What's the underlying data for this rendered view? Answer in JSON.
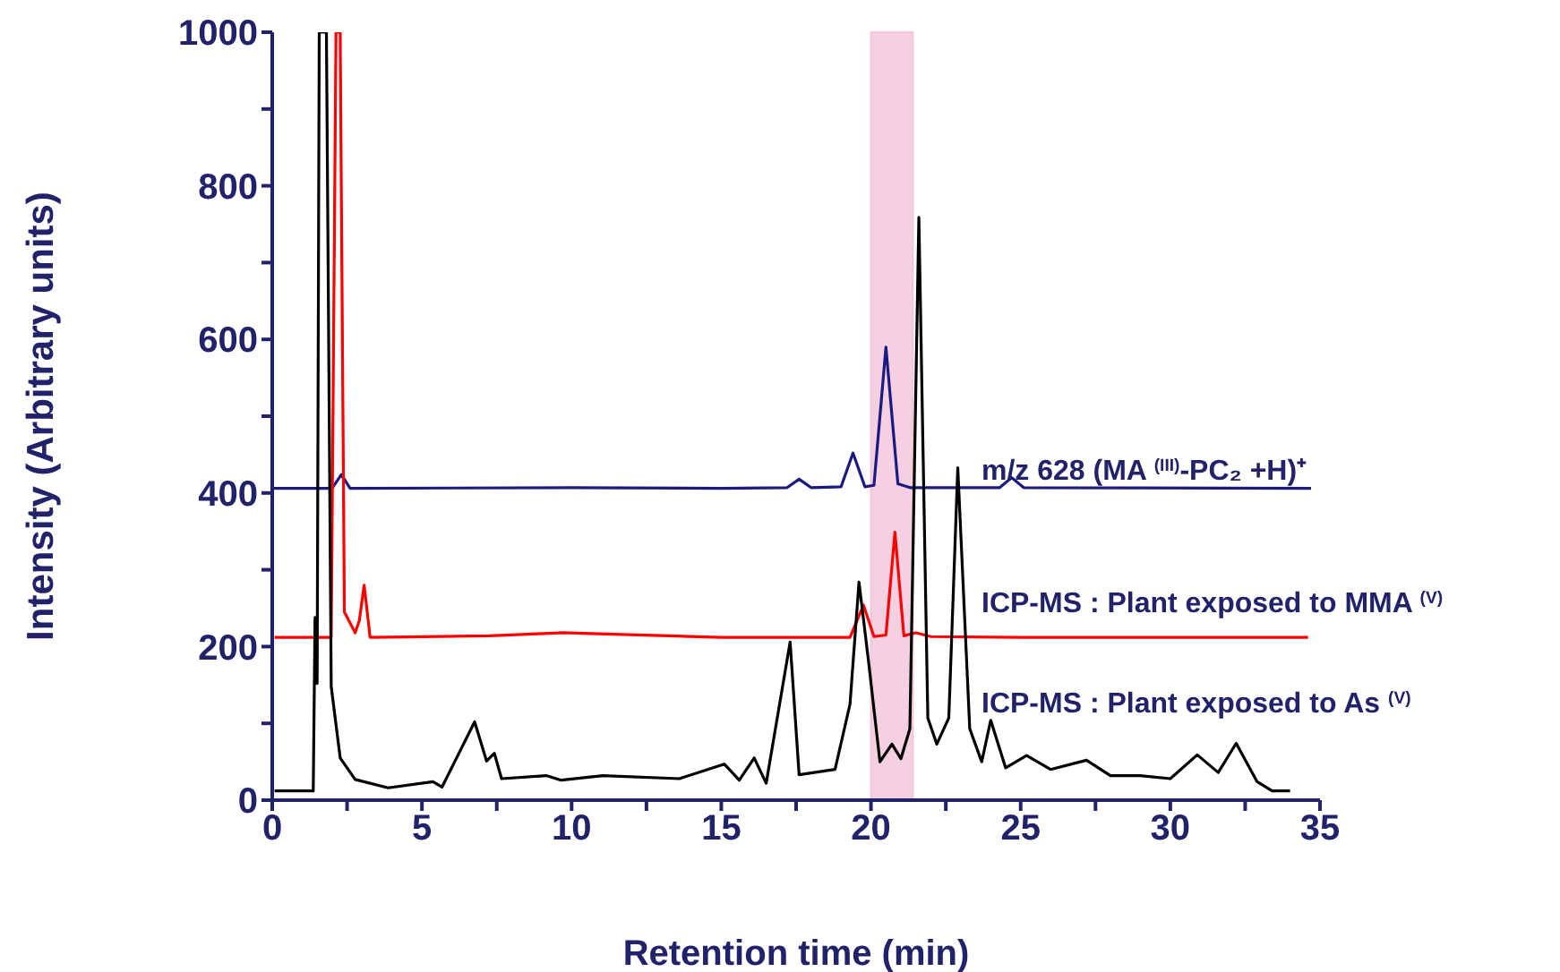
{
  "chart_data": {
    "type": "line",
    "xlabel": "Retention time (min)",
    "ylabel": "Intensity (Arbitrary units)",
    "xlim": [
      0,
      35
    ],
    "ylim": [
      0,
      1000
    ],
    "xticks": [
      0,
      {
        "value": 2.5,
        "label": null
      },
      5,
      {
        "value": 7.5,
        "label": null
      },
      10,
      {
        "value": 12.5,
        "label": null
      },
      15,
      {
        "value": 17.5,
        "label": null
      },
      20,
      {
        "value": 22.5,
        "label": null
      },
      25,
      {
        "value": 27.5,
        "label": null
      },
      30,
      {
        "value": 32.5,
        "label": null
      },
      35
    ],
    "yticks": [
      0,
      {
        "value": 100,
        "label": null
      },
      200,
      {
        "value": 300,
        "label": null
      },
      400,
      {
        "value": 500,
        "label": null
      },
      600,
      {
        "value": 700,
        "label": null
      },
      800,
      {
        "value": 900,
        "label": null
      },
      1000
    ],
    "bands": [
      {
        "axis": "x",
        "from": 20.0,
        "to": 21.4,
        "color": "#f2c4da"
      }
    ],
    "series": [
      {
        "name": "m/z 628 (MA $^{(III)}$-PC₂ +H)⁺",
        "color": "#1a1a80",
        "x": [
          0,
          2,
          2.31,
          2.6,
          10,
          15,
          17.2,
          17.6,
          18.0,
          19.0,
          19.4,
          19.8,
          20.1,
          20.5,
          20.9,
          21.3,
          24.3,
          24.7,
          25.1,
          34.7
        ],
        "values": [
          406,
          406,
          424,
          406,
          407,
          406,
          407,
          418,
          407,
          408,
          452,
          408,
          410,
          590,
          412,
          407,
          407,
          420,
          407,
          406
        ]
      },
      {
        "name": "ICP-MS : Plant exposed to MMA $^{(V)}$",
        "color": "#ff0000",
        "x": [
          0.08,
          1.97,
          2.13,
          2.27,
          2.41,
          2.77,
          2.91,
          3.07,
          3.27,
          7.26,
          9.75,
          10.65,
          15,
          19.3,
          19.75,
          20.1,
          20.5,
          20.8,
          21.1,
          21.5,
          22,
          25,
          30,
          34.6
        ],
        "values": [
          212,
          212,
          1000,
          1000,
          245,
          218,
          234,
          280,
          212,
          214,
          218,
          217,
          212,
          212,
          254,
          213,
          215,
          349,
          214,
          218,
          213,
          212,
          212,
          212
        ]
      },
      {
        "name": "ICP-MS : Plant exposed to As $^{(V)}$",
        "color": "#000000",
        "x": [
          0.08,
          1.37,
          1.43,
          1.5,
          1.57,
          1.81,
          1.97,
          2.27,
          2.77,
          3.87,
          5.37,
          5.67,
          6.76,
          7.16,
          7.42,
          7.66,
          9.15,
          9.65,
          11.05,
          13.6,
          15.1,
          15.6,
          16.1,
          16.5,
          17.3,
          17.6,
          18.8,
          19.3,
          19.6,
          19.9,
          20.3,
          20.7,
          21.0,
          21.3,
          21.6,
          21.9,
          22.2,
          22.6,
          22.9,
          23.3,
          23.7,
          24.0,
          24.5,
          25.2,
          26.0,
          27.2,
          28.0,
          29.0,
          30.0,
          30.9,
          31.6,
          32.2,
          32.9,
          33.4,
          34.0
        ],
        "values": [
          12,
          12,
          238,
          152,
          1000,
          1000,
          148,
          55,
          27,
          16,
          24,
          17,
          102,
          51,
          61,
          28,
          32,
          26,
          32,
          28,
          47,
          26,
          55,
          22,
          206,
          33,
          40,
          125,
          284,
          187,
          50,
          73,
          54,
          93,
          759,
          107,
          73,
          107,
          433,
          93,
          50,
          104,
          42,
          58,
          40,
          52,
          32,
          32,
          28,
          59,
          36,
          74,
          24,
          12,
          12
        ]
      }
    ]
  }
}
